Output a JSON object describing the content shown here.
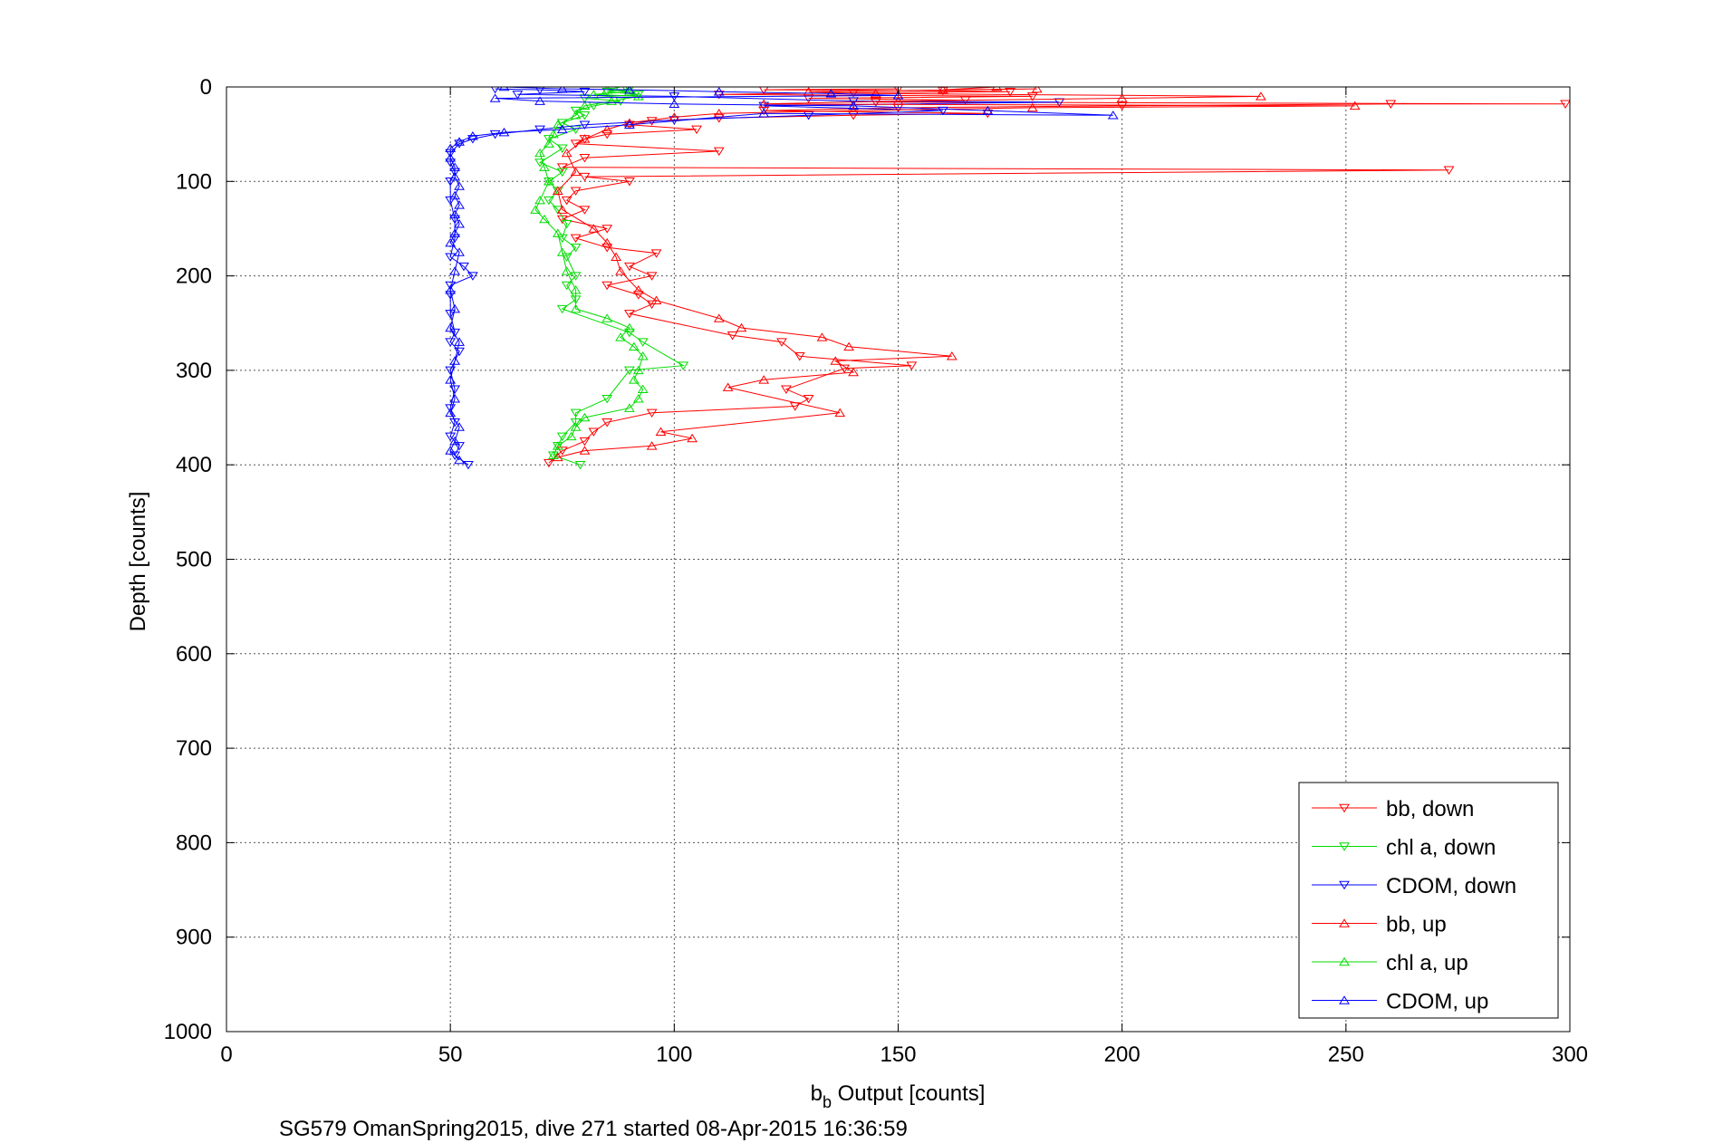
{
  "chart_data": {
    "type": "scatter",
    "xlabel_base": "b",
    "xlabel_sub": "b",
    "xlabel_rest": " Output [counts]",
    "ylabel": "Depth [counts]",
    "subtitle": "SG579 OmanSpring2015, dive 271 started 08-Apr-2015 16:36:59",
    "xlim": [
      0,
      300
    ],
    "ylim": [
      0,
      1000
    ],
    "y_reversed": true,
    "xticks": [
      0,
      50,
      100,
      150,
      200,
      250,
      300
    ],
    "yticks": [
      0,
      100,
      200,
      300,
      400,
      500,
      600,
      700,
      800,
      900,
      1000
    ],
    "grid": true,
    "legend_position": "bottom-right",
    "series": [
      {
        "name": "bb, down",
        "color": "#ff0000",
        "marker": "triangle-down",
        "points": [
          [
            150,
            2
          ],
          [
            120,
            3
          ],
          [
            160,
            4
          ],
          [
            175,
            5
          ],
          [
            140,
            6
          ],
          [
            110,
            8
          ],
          [
            180,
            10
          ],
          [
            130,
            12
          ],
          [
            165,
            14
          ],
          [
            145,
            16
          ],
          [
            299,
            18
          ],
          [
            260,
            18
          ],
          [
            200,
            20
          ],
          [
            150,
            22
          ],
          [
            120,
            25
          ],
          [
            170,
            28
          ],
          [
            140,
            30
          ],
          [
            110,
            33
          ],
          [
            95,
            36
          ],
          [
            90,
            40
          ],
          [
            105,
            45
          ],
          [
            85,
            50
          ],
          [
            80,
            55
          ],
          [
            78,
            60
          ],
          [
            110,
            68
          ],
          [
            80,
            75
          ],
          [
            75,
            85
          ],
          [
            273,
            88
          ],
          [
            80,
            95
          ],
          [
            90,
            100
          ],
          [
            78,
            110
          ],
          [
            76,
            120
          ],
          [
            80,
            130
          ],
          [
            75,
            140
          ],
          [
            85,
            150
          ],
          [
            78,
            160
          ],
          [
            85,
            170
          ],
          [
            96,
            176
          ],
          [
            90,
            190
          ],
          [
            95,
            200
          ],
          [
            85,
            210
          ],
          [
            92,
            220
          ],
          [
            95,
            230
          ],
          [
            90,
            240
          ],
          [
            113,
            263
          ],
          [
            124,
            270
          ],
          [
            128,
            285
          ],
          [
            153,
            295
          ],
          [
            138,
            298
          ],
          [
            125,
            320
          ],
          [
            130,
            330
          ],
          [
            127,
            338
          ],
          [
            95,
            345
          ],
          [
            85,
            355
          ],
          [
            82,
            365
          ],
          [
            80,
            375
          ],
          [
            75,
            385
          ],
          [
            72,
            398
          ]
        ]
      },
      {
        "name": "chl a, down",
        "color": "#00dd00",
        "marker": "triangle-down",
        "points": [
          [
            90,
            2
          ],
          [
            85,
            5
          ],
          [
            92,
            8
          ],
          [
            80,
            12
          ],
          [
            88,
            15
          ],
          [
            82,
            20
          ],
          [
            78,
            25
          ],
          [
            80,
            30
          ],
          [
            75,
            38
          ],
          [
            78,
            45
          ],
          [
            72,
            55
          ],
          [
            75,
            65
          ],
          [
            70,
            80
          ],
          [
            75,
            90
          ],
          [
            72,
            100
          ],
          [
            74,
            110
          ],
          [
            72,
            120
          ],
          [
            74,
            130
          ],
          [
            76,
            145
          ],
          [
            75,
            160
          ],
          [
            78,
            170
          ],
          [
            76,
            180
          ],
          [
            78,
            200
          ],
          [
            76,
            210
          ],
          [
            78,
            225
          ],
          [
            75,
            235
          ],
          [
            90,
            260
          ],
          [
            93,
            270
          ],
          [
            102,
            295
          ],
          [
            90,
            300
          ],
          [
            85,
            330
          ],
          [
            78,
            345
          ],
          [
            78,
            355
          ],
          [
            75,
            370
          ],
          [
            74,
            380
          ],
          [
            73,
            390
          ],
          [
            79,
            400
          ]
        ]
      },
      {
        "name": "CDOM, down",
        "color": "#0000ff",
        "marker": "triangle-down",
        "points": [
          [
            60,
            2
          ],
          [
            70,
            3
          ],
          [
            80,
            5
          ],
          [
            65,
            8
          ],
          [
            100,
            10
          ],
          [
            140,
            15
          ],
          [
            186,
            16
          ],
          [
            120,
            20
          ],
          [
            160,
            25
          ],
          [
            130,
            30
          ],
          [
            100,
            35
          ],
          [
            80,
            40
          ],
          [
            70,
            45
          ],
          [
            60,
            50
          ],
          [
            55,
            55
          ],
          [
            52,
            60
          ],
          [
            50,
            70
          ],
          [
            50,
            80
          ],
          [
            51,
            90
          ],
          [
            50,
            100
          ],
          [
            50,
            120
          ],
          [
            51,
            140
          ],
          [
            51,
            160
          ],
          [
            50,
            180
          ],
          [
            53,
            190
          ],
          [
            55,
            200
          ],
          [
            50,
            210
          ],
          [
            50,
            220
          ],
          [
            50,
            240
          ],
          [
            51,
            260
          ],
          [
            50,
            270
          ],
          [
            52,
            280
          ],
          [
            50,
            300
          ],
          [
            51,
            320
          ],
          [
            50,
            340
          ],
          [
            51,
            355
          ],
          [
            50,
            370
          ],
          [
            52,
            380
          ],
          [
            51,
            390
          ],
          [
            54,
            400
          ]
        ]
      },
      {
        "name": "bb, up",
        "color": "#ff0000",
        "marker": "triangle-up",
        "points": [
          [
            172,
            0
          ],
          [
            160,
            3
          ],
          [
            181,
            2
          ],
          [
            130,
            5
          ],
          [
            145,
            7
          ],
          [
            231,
            10
          ],
          [
            200,
            12
          ],
          [
            150,
            15
          ],
          [
            120,
            18
          ],
          [
            252,
            20
          ],
          [
            180,
            22
          ],
          [
            140,
            25
          ],
          [
            110,
            28
          ],
          [
            100,
            32
          ],
          [
            90,
            38
          ],
          [
            85,
            45
          ],
          [
            80,
            55
          ],
          [
            76,
            70
          ],
          [
            78,
            90
          ],
          [
            74,
            110
          ],
          [
            75,
            130
          ],
          [
            82,
            150
          ],
          [
            85,
            165
          ],
          [
            87,
            180
          ],
          [
            88,
            195
          ],
          [
            92,
            215
          ],
          [
            96,
            226
          ],
          [
            110,
            245
          ],
          [
            115,
            255
          ],
          [
            133,
            265
          ],
          [
            139,
            275
          ],
          [
            162,
            285
          ],
          [
            136,
            290
          ],
          [
            140,
            302
          ],
          [
            120,
            310
          ],
          [
            112,
            318
          ],
          [
            137,
            345
          ],
          [
            97,
            365
          ],
          [
            104,
            372
          ],
          [
            95,
            380
          ],
          [
            80,
            385
          ],
          [
            74,
            392
          ]
        ]
      },
      {
        "name": "chl a, up",
        "color": "#00dd00",
        "marker": "triangle-up",
        "points": [
          [
            88,
            0
          ],
          [
            85,
            3
          ],
          [
            90,
            5
          ],
          [
            82,
            8
          ],
          [
            92,
            10
          ],
          [
            86,
            15
          ],
          [
            80,
            20
          ],
          [
            78,
            30
          ],
          [
            74,
            40
          ],
          [
            73,
            50
          ],
          [
            72,
            60
          ],
          [
            70,
            70
          ],
          [
            71,
            85
          ],
          [
            72,
            100
          ],
          [
            70,
            120
          ],
          [
            69,
            130
          ],
          [
            71,
            140
          ],
          [
            74,
            155
          ],
          [
            75,
            175
          ],
          [
            76,
            195
          ],
          [
            78,
            215
          ],
          [
            78,
            235
          ],
          [
            85,
            245
          ],
          [
            90,
            255
          ],
          [
            88,
            265
          ],
          [
            91,
            275
          ],
          [
            93,
            285
          ],
          [
            92,
            300
          ],
          [
            91,
            310
          ],
          [
            93,
            320
          ],
          [
            92,
            330
          ],
          [
            90,
            340
          ],
          [
            80,
            350
          ],
          [
            78,
            360
          ],
          [
            77,
            370
          ],
          [
            74,
            380
          ],
          [
            73,
            390
          ]
        ]
      },
      {
        "name": "CDOM, up",
        "color": "#0000ff",
        "marker": "triangle-up",
        "points": [
          [
            62,
            0
          ],
          [
            75,
            2
          ],
          [
            90,
            3
          ],
          [
            110,
            5
          ],
          [
            135,
            7
          ],
          [
            150,
            9
          ],
          [
            60,
            12
          ],
          [
            70,
            15
          ],
          [
            100,
            18
          ],
          [
            140,
            20
          ],
          [
            170,
            25
          ],
          [
            198,
            30
          ],
          [
            120,
            28
          ],
          [
            90,
            40
          ],
          [
            75,
            45
          ],
          [
            62,
            48
          ],
          [
            55,
            52
          ],
          [
            52,
            58
          ],
          [
            50,
            65
          ],
          [
            50,
            75
          ],
          [
            51,
            85
          ],
          [
            51,
            95
          ],
          [
            52,
            105
          ],
          [
            51,
            115
          ],
          [
            52,
            125
          ],
          [
            51,
            135
          ],
          [
            52,
            145
          ],
          [
            51,
            155
          ],
          [
            50,
            165
          ],
          [
            52,
            175
          ],
          [
            51,
            195
          ],
          [
            50,
            215
          ],
          [
            51,
            235
          ],
          [
            50,
            255
          ],
          [
            52,
            270
          ],
          [
            51,
            290
          ],
          [
            50,
            310
          ],
          [
            51,
            330
          ],
          [
            50,
            345
          ],
          [
            52,
            360
          ],
          [
            51,
            375
          ],
          [
            50,
            385
          ],
          [
            52,
            395
          ]
        ]
      }
    ]
  }
}
